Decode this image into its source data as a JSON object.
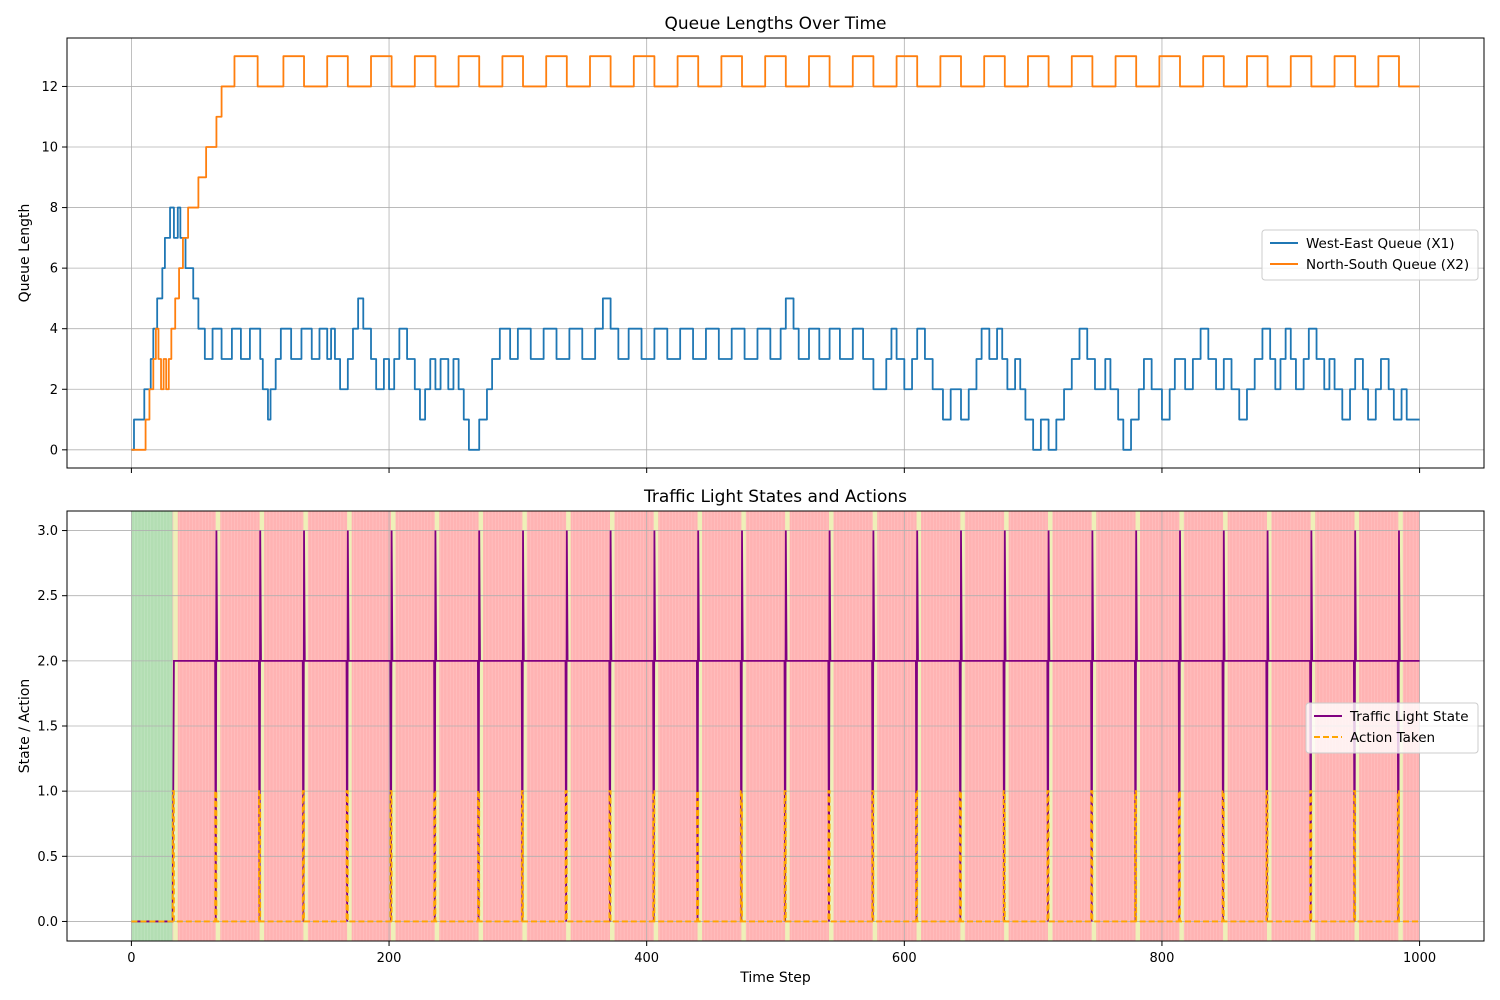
{
  "chart_data": [
    {
      "type": "line",
      "title": "Queue Lengths Over Time",
      "xlabel": "",
      "ylabel": "Queue Length",
      "xlim": [
        -50,
        1050
      ],
      "ylim": [
        -0.6,
        13.6
      ],
      "xticks": [
        0,
        200,
        400,
        600,
        800,
        1000
      ],
      "yticks": [
        0,
        2,
        4,
        6,
        8,
        10,
        12
      ],
      "grid": true,
      "legend_position": "center-right",
      "series": [
        {
          "name": "West-East Queue (X1)",
          "color": "#1f77b4",
          "points": [
            [
              0,
              0
            ],
            [
              2,
              1
            ],
            [
              10,
              2
            ],
            [
              15,
              3
            ],
            [
              17,
              4
            ],
            [
              20,
              5
            ],
            [
              24,
              6
            ],
            [
              26,
              7
            ],
            [
              30,
              8
            ],
            [
              33,
              7
            ],
            [
              36,
              8
            ],
            [
              38,
              7
            ],
            [
              42,
              6
            ],
            [
              48,
              5
            ],
            [
              52,
              4
            ],
            [
              57,
              3
            ],
            [
              63,
              4
            ],
            [
              70,
              3
            ],
            [
              78,
              4
            ],
            [
              85,
              3
            ],
            [
              92,
              4
            ],
            [
              100,
              3
            ],
            [
              102,
              2
            ],
            [
              106,
              1
            ],
            [
              108,
              2
            ],
            [
              112,
              3
            ],
            [
              116,
              4
            ],
            [
              124,
              3
            ],
            [
              132,
              4
            ],
            [
              140,
              3
            ],
            [
              146,
              4
            ],
            [
              152,
              3
            ],
            [
              155,
              4
            ],
            [
              158,
              3
            ],
            [
              162,
              2
            ],
            [
              168,
              3
            ],
            [
              172,
              4
            ],
            [
              176,
              5
            ],
            [
              180,
              4
            ],
            [
              186,
              3
            ],
            [
              190,
              2
            ],
            [
              196,
              3
            ],
            [
              200,
              2
            ],
            [
              204,
              3
            ],
            [
              208,
              4
            ],
            [
              214,
              3
            ],
            [
              220,
              2
            ],
            [
              224,
              1
            ],
            [
              228,
              2
            ],
            [
              232,
              3
            ],
            [
              236,
              2
            ],
            [
              240,
              3
            ],
            [
              246,
              2
            ],
            [
              250,
              3
            ],
            [
              254,
              2
            ],
            [
              258,
              1
            ],
            [
              262,
              0
            ],
            [
              270,
              1
            ],
            [
              276,
              2
            ],
            [
              280,
              3
            ],
            [
              286,
              4
            ],
            [
              294,
              3
            ],
            [
              300,
              4
            ],
            [
              310,
              3
            ],
            [
              320,
              4
            ],
            [
              330,
              3
            ],
            [
              340,
              4
            ],
            [
              350,
              3
            ],
            [
              360,
              4
            ],
            [
              366,
              5
            ],
            [
              372,
              4
            ],
            [
              378,
              3
            ],
            [
              386,
              4
            ],
            [
              396,
              3
            ],
            [
              406,
              4
            ],
            [
              416,
              3
            ],
            [
              426,
              4
            ],
            [
              436,
              3
            ],
            [
              446,
              4
            ],
            [
              456,
              3
            ],
            [
              466,
              4
            ],
            [
              476,
              3
            ],
            [
              486,
              4
            ],
            [
              496,
              3
            ],
            [
              504,
              4
            ],
            [
              508,
              5
            ],
            [
              514,
              4
            ],
            [
              518,
              3
            ],
            [
              526,
              4
            ],
            [
              534,
              3
            ],
            [
              542,
              4
            ],
            [
              550,
              3
            ],
            [
              560,
              4
            ],
            [
              568,
              3
            ],
            [
              576,
              2
            ],
            [
              586,
              3
            ],
            [
              590,
              4
            ],
            [
              594,
              3
            ],
            [
              600,
              2
            ],
            [
              606,
              3
            ],
            [
              610,
              4
            ],
            [
              616,
              3
            ],
            [
              622,
              2
            ],
            [
              630,
              1
            ],
            [
              636,
              2
            ],
            [
              644,
              1
            ],
            [
              650,
              2
            ],
            [
              656,
              3
            ],
            [
              660,
              4
            ],
            [
              666,
              3
            ],
            [
              672,
              4
            ],
            [
              676,
              3
            ],
            [
              680,
              2
            ],
            [
              686,
              3
            ],
            [
              690,
              2
            ],
            [
              694,
              1
            ],
            [
              700,
              0
            ],
            [
              706,
              1
            ],
            [
              712,
              0
            ],
            [
              718,
              1
            ],
            [
              724,
              2
            ],
            [
              730,
              3
            ],
            [
              736,
              4
            ],
            [
              742,
              3
            ],
            [
              748,
              2
            ],
            [
              756,
              3
            ],
            [
              760,
              2
            ],
            [
              766,
              1
            ],
            [
              770,
              0
            ],
            [
              776,
              1
            ],
            [
              782,
              2
            ],
            [
              786,
              3
            ],
            [
              792,
              2
            ],
            [
              800,
              1
            ],
            [
              806,
              2
            ],
            [
              810,
              3
            ],
            [
              818,
              2
            ],
            [
              824,
              3
            ],
            [
              830,
              4
            ],
            [
              836,
              3
            ],
            [
              842,
              2
            ],
            [
              848,
              3
            ],
            [
              854,
              2
            ],
            [
              860,
              1
            ],
            [
              866,
              2
            ],
            [
              872,
              3
            ],
            [
              878,
              4
            ],
            [
              884,
              3
            ],
            [
              888,
              2
            ],
            [
              892,
              3
            ],
            [
              896,
              4
            ],
            [
              900,
              3
            ],
            [
              904,
              2
            ],
            [
              910,
              3
            ],
            [
              914,
              4
            ],
            [
              920,
              3
            ],
            [
              926,
              2
            ],
            [
              930,
              3
            ],
            [
              934,
              2
            ],
            [
              940,
              1
            ],
            [
              946,
              2
            ],
            [
              950,
              3
            ],
            [
              956,
              2
            ],
            [
              960,
              1
            ],
            [
              966,
              2
            ],
            [
              970,
              3
            ],
            [
              976,
              2
            ],
            [
              980,
              1
            ],
            [
              986,
              2
            ],
            [
              990,
              1
            ],
            [
              1000,
              1
            ]
          ]
        },
        {
          "name": "North-South Queue (X2)",
          "color": "#ff7f0e",
          "points": [
            [
              0,
              0
            ],
            [
              9,
              0
            ],
            [
              11,
              1
            ],
            [
              14,
              2
            ],
            [
              17,
              3
            ],
            [
              19,
              4
            ],
            [
              21,
              3
            ],
            [
              23,
              2
            ],
            [
              25,
              3
            ],
            [
              27,
              2
            ],
            [
              29,
              3
            ],
            [
              31,
              4
            ],
            [
              34,
              5
            ],
            [
              37,
              6
            ],
            [
              40,
              7
            ],
            [
              44,
              8
            ],
            [
              52,
              9
            ],
            [
              58,
              10
            ],
            [
              66,
              11
            ],
            [
              70,
              12
            ],
            [
              80,
              13
            ],
            [
              98,
              12
            ],
            [
              118,
              13
            ],
            [
              134,
              12
            ],
            [
              152,
              13
            ],
            [
              168,
              12
            ],
            [
              186,
              13
            ],
            [
              202,
              12
            ],
            [
              220,
              13
            ],
            [
              236,
              12
            ],
            [
              254,
              13
            ],
            [
              270,
              12
            ],
            [
              288,
              13
            ],
            [
              304,
              12
            ],
            [
              322,
              13
            ],
            [
              338,
              12
            ],
            [
              356,
              13
            ],
            [
              372,
              12
            ],
            [
              390,
              13
            ],
            [
              406,
              12
            ],
            [
              424,
              13
            ],
            [
              440,
              12
            ],
            [
              458,
              13
            ],
            [
              474,
              12
            ],
            [
              492,
              13
            ],
            [
              508,
              12
            ],
            [
              526,
              13
            ],
            [
              542,
              12
            ],
            [
              560,
              13
            ],
            [
              576,
              12
            ],
            [
              594,
              13
            ],
            [
              610,
              12
            ],
            [
              628,
              13
            ],
            [
              644,
              12
            ],
            [
              662,
              13
            ],
            [
              678,
              12
            ],
            [
              696,
              13
            ],
            [
              712,
              12
            ],
            [
              730,
              13
            ],
            [
              746,
              12
            ],
            [
              764,
              13
            ],
            [
              780,
              12
            ],
            [
              798,
              13
            ],
            [
              814,
              12
            ],
            [
              832,
              13
            ],
            [
              848,
              12
            ],
            [
              866,
              13
            ],
            [
              882,
              12
            ],
            [
              900,
              13
            ],
            [
              916,
              12
            ],
            [
              934,
              13
            ],
            [
              950,
              12
            ],
            [
              968,
              13
            ],
            [
              984,
              12
            ],
            [
              1000,
              12
            ]
          ]
        }
      ]
    },
    {
      "type": "line",
      "title": "Traffic Light States and Actions",
      "xlabel": "Time Step",
      "ylabel": "State / Action",
      "xlim": [
        -50,
        1050
      ],
      "ylim": [
        -0.15,
        3.15
      ],
      "xticks": [
        0,
        200,
        400,
        600,
        800,
        1000
      ],
      "yticks": [
        0.0,
        0.5,
        1.0,
        1.5,
        2.0,
        2.5,
        3.0
      ],
      "grid": true,
      "legend_position": "center-right",
      "background_state_colors": {
        "green": "#b3deb3",
        "yellow": "#eef0b8",
        "red": "#ffb3b3"
      },
      "green_phase_end": 32,
      "state_pulse_times": [
        32,
        65,
        99,
        133,
        167,
        201,
        235,
        269,
        303,
        337,
        371,
        405,
        439,
        473,
        507,
        541,
        575,
        609,
        643,
        677,
        711,
        745,
        779,
        813,
        847,
        881,
        915,
        949,
        983
      ],
      "series": [
        {
          "name": "Traffic Light State",
          "color": "#800080",
          "style": "solid",
          "baseline": 2.0,
          "initial": 0,
          "pulse_peak": 3.0
        },
        {
          "name": "Action Taken",
          "color": "#ffa500",
          "style": "dashed",
          "baseline": 0.0,
          "pulse_peak": 1.0
        }
      ]
    }
  ]
}
